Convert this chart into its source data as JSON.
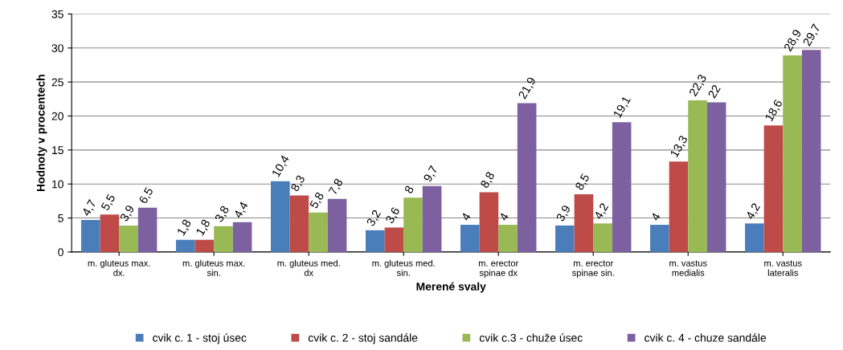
{
  "chart_data": {
    "type": "bar",
    "xlabel": "Merené svaly",
    "ylabel": "Hodnoty v procentech",
    "categories": [
      "m. gluteus max.\ndx.",
      "m. gluteus max.\nsin.",
      "m. gluteus med.\ndx",
      "m. gluteus med.\nsin.",
      "m. erector\nspinae dx",
      "m. erector\nspinae sin.",
      "m. vastus\nmedialis",
      "m. vastus\nlateralis"
    ],
    "series": [
      {
        "name": "cvik c. 1 - stoj úsec",
        "color": "#4a7ebb",
        "values": [
          4.7,
          1.8,
          10.4,
          3.2,
          4,
          3.9,
          4,
          4.2
        ],
        "value_labels": [
          "4,7",
          "1,8",
          "10,4",
          "3,2",
          "4",
          "3,9",
          "4",
          "4,2"
        ]
      },
      {
        "name": "cvik c. 2 - stoj sandále",
        "color": "#be4b48",
        "values": [
          5.5,
          1.8,
          8.3,
          3.6,
          8.8,
          8.5,
          13.3,
          18.6
        ],
        "value_labels": [
          "5,5",
          "1,8",
          "8,3",
          "3,6",
          "8,8",
          "8,5",
          "13,3",
          "18,6"
        ]
      },
      {
        "name": "cvik c.3 - chuže úsec",
        "color": "#98b954",
        "values": [
          3.9,
          3.8,
          5.8,
          8,
          4,
          4.2,
          22.3,
          28.9
        ],
        "value_labels": [
          "3,9",
          "3,8",
          "5,8",
          "8",
          "4",
          "4,2",
          "22,3",
          "28,9"
        ]
      },
      {
        "name": "cvik c. 4 - chuze sandále",
        "color": "#7d60a0",
        "values": [
          6.5,
          4.4,
          7.8,
          9.7,
          21.9,
          19.1,
          22,
          29.7
        ],
        "value_labels": [
          "6,5",
          "4,4",
          "7,8",
          "9,7",
          "21,9",
          "19,1",
          "22",
          "29,7"
        ]
      }
    ],
    "ylim": [
      0,
      35
    ],
    "yticks": [
      0,
      5,
      10,
      15,
      20,
      25,
      30,
      35
    ],
    "grid": "y",
    "legend": "bottom"
  }
}
